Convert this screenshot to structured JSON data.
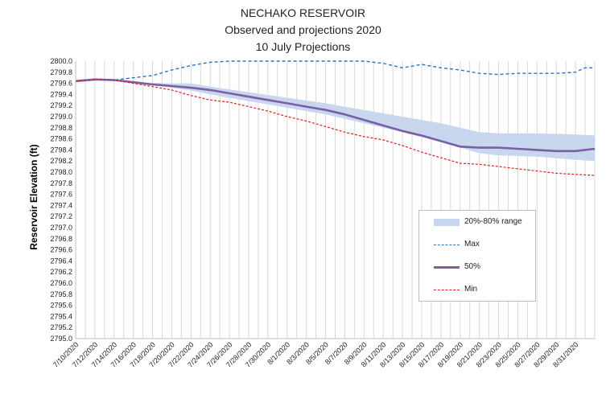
{
  "chart_data": {
    "type": "line",
    "title": [
      "NECHAKO RESERVOIR",
      "Observed and projections 2020",
      "10 July Projections"
    ],
    "xlabel": "",
    "ylabel": "Reservoir Elevation (ft)",
    "ylim": [
      2795.0,
      2800.0
    ],
    "y_step": 0.2,
    "x_tick_labels": [
      "7/10/2020",
      "7/12/2020",
      "7/14/2020",
      "7/16/2020",
      "7/18/2020",
      "7/20/2020",
      "7/22/2020",
      "7/24/2020",
      "7/26/2020",
      "7/28/2020",
      "7/30/2020",
      "8/1/2020",
      "8/3/2020",
      "8/5/2020",
      "8/7/2020",
      "8/9/2020",
      "8/11/2020",
      "8/13/2020",
      "8/15/2020",
      "8/17/2020",
      "8/19/2020",
      "8/21/2020",
      "8/23/2020",
      "8/25/2020",
      "8/27/2020",
      "8/29/2020",
      "8/31/2020"
    ],
    "x_days": 54,
    "grid": "vertical",
    "legend_position": "bottom-right",
    "colors": {
      "band": "#c9d7ee",
      "max": "#2e75b6",
      "p50": "#7a5fa6",
      "min": "#e02020",
      "grid": "#d9d9d9"
    },
    "band": {
      "name": "20%-80% range",
      "points": [
        [
          0,
          2799.64,
          2799.64
        ],
        [
          2,
          2799.68,
          2799.68
        ],
        [
          4,
          2799.66,
          2799.66
        ],
        [
          6,
          2799.62,
          2799.62
        ],
        [
          10,
          2799.52,
          2799.6
        ],
        [
          12,
          2799.47,
          2799.6
        ],
        [
          14,
          2799.4,
          2799.54
        ],
        [
          18,
          2799.28,
          2799.44
        ],
        [
          22,
          2799.16,
          2799.34
        ],
        [
          26,
          2799.04,
          2799.24
        ],
        [
          30,
          2798.88,
          2799.12
        ],
        [
          34,
          2798.72,
          2799.0
        ],
        [
          38,
          2798.54,
          2798.88
        ],
        [
          42,
          2798.34,
          2798.72
        ],
        [
          44,
          2798.3,
          2798.7
        ],
        [
          48,
          2798.28,
          2798.7
        ],
        [
          52,
          2798.22,
          2798.68
        ],
        [
          54,
          2798.2,
          2798.66
        ]
      ]
    },
    "series": [
      {
        "name": "Max",
        "style": "dashed",
        "points": [
          [
            0,
            2799.64
          ],
          [
            2,
            2799.67
          ],
          [
            4,
            2799.66
          ],
          [
            6,
            2799.7
          ],
          [
            8,
            2799.74
          ],
          [
            10,
            2799.84
          ],
          [
            12,
            2799.92
          ],
          [
            14,
            2799.98
          ],
          [
            16,
            2800.0
          ],
          [
            30,
            2800.0
          ],
          [
            32,
            2799.96
          ],
          [
            34,
            2799.88
          ],
          [
            36,
            2799.94
          ],
          [
            38,
            2799.88
          ],
          [
            40,
            2799.84
          ],
          [
            42,
            2799.78
          ],
          [
            44,
            2799.76
          ],
          [
            46,
            2799.78
          ],
          [
            48,
            2799.78
          ],
          [
            50,
            2799.78
          ],
          [
            52,
            2799.8
          ],
          [
            53,
            2799.88
          ],
          [
            54,
            2799.88
          ]
        ]
      },
      {
        "name": "50%",
        "style": "solid",
        "points": [
          [
            0,
            2799.64
          ],
          [
            2,
            2799.67
          ],
          [
            4,
            2799.66
          ],
          [
            6,
            2799.62
          ],
          [
            8,
            2799.58
          ],
          [
            10,
            2799.55
          ],
          [
            12,
            2799.52
          ],
          [
            14,
            2799.48
          ],
          [
            16,
            2799.42
          ],
          [
            18,
            2799.36
          ],
          [
            20,
            2799.3
          ],
          [
            22,
            2799.24
          ],
          [
            24,
            2799.18
          ],
          [
            26,
            2799.12
          ],
          [
            28,
            2799.04
          ],
          [
            30,
            2798.94
          ],
          [
            32,
            2798.84
          ],
          [
            34,
            2798.74
          ],
          [
            36,
            2798.66
          ],
          [
            38,
            2798.56
          ],
          [
            40,
            2798.46
          ],
          [
            42,
            2798.44
          ],
          [
            44,
            2798.44
          ],
          [
            46,
            2798.42
          ],
          [
            48,
            2798.4
          ],
          [
            50,
            2798.38
          ],
          [
            52,
            2798.38
          ],
          [
            54,
            2798.42
          ]
        ]
      },
      {
        "name": "Min",
        "style": "dashed",
        "points": [
          [
            0,
            2799.64
          ],
          [
            2,
            2799.67
          ],
          [
            4,
            2799.66
          ],
          [
            6,
            2799.6
          ],
          [
            8,
            2799.54
          ],
          [
            10,
            2799.48
          ],
          [
            12,
            2799.38
          ],
          [
            14,
            2799.3
          ],
          [
            16,
            2799.26
          ],
          [
            18,
            2799.18
          ],
          [
            20,
            2799.1
          ],
          [
            22,
            2799.0
          ],
          [
            24,
            2798.92
          ],
          [
            26,
            2798.82
          ],
          [
            28,
            2798.72
          ],
          [
            30,
            2798.64
          ],
          [
            32,
            2798.58
          ],
          [
            34,
            2798.48
          ],
          [
            36,
            2798.36
          ],
          [
            38,
            2798.26
          ],
          [
            40,
            2798.16
          ],
          [
            42,
            2798.14
          ],
          [
            44,
            2798.1
          ],
          [
            46,
            2798.06
          ],
          [
            48,
            2798.02
          ],
          [
            50,
            2797.98
          ],
          [
            52,
            2797.96
          ],
          [
            54,
            2797.94
          ]
        ]
      }
    ]
  },
  "legend": {
    "band_label": "20%-80% range",
    "max_label": "Max",
    "p50_label": "50%",
    "min_label": "Min"
  }
}
